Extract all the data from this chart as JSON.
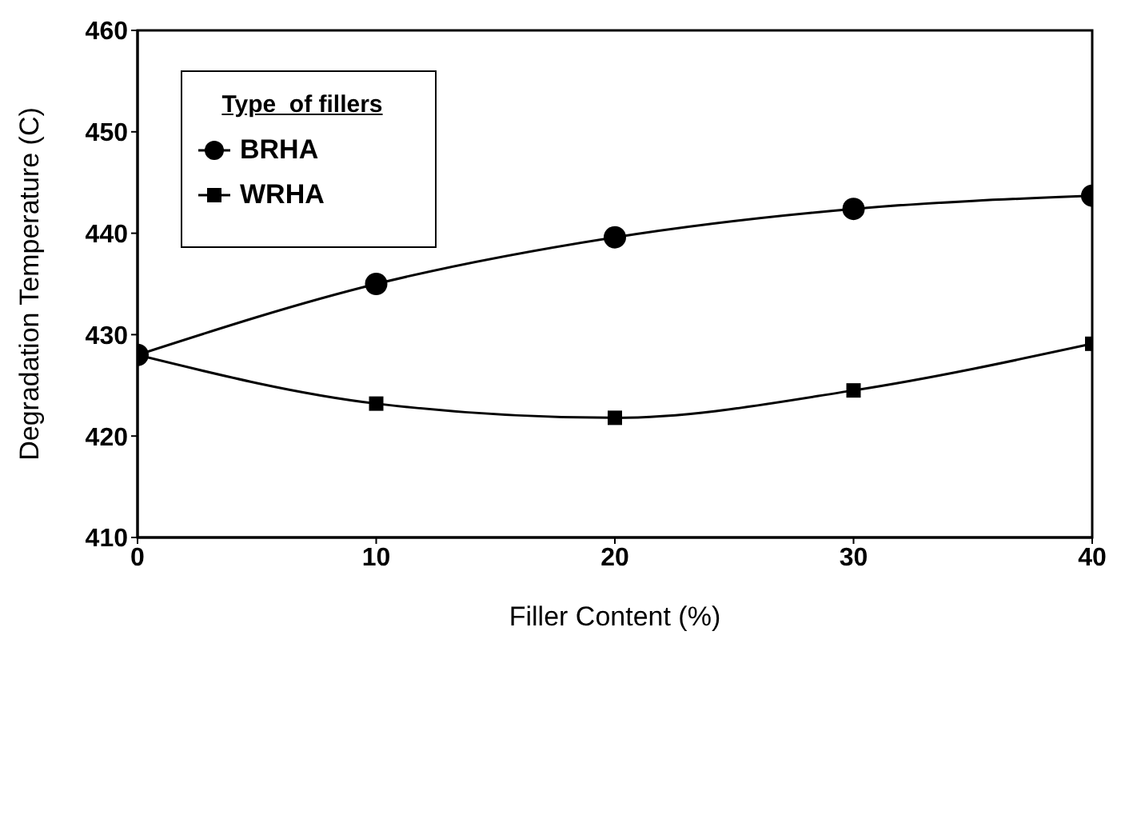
{
  "chart_data": {
    "type": "line",
    "xlabel": "Filler Content (%)",
    "ylabel": "Degradation Temperature (C)",
    "legend_title": "Type  of fillers",
    "x": [
      0,
      10,
      20,
      30,
      40
    ],
    "series": [
      {
        "name": "BRHA",
        "color": "#000000",
        "marker": "circle",
        "values": [
          428,
          435,
          439.6,
          442.4,
          443.7
        ]
      },
      {
        "name": "WRHA",
        "color": "#000000",
        "marker": "square",
        "values": [
          428,
          423.2,
          421.8,
          424.5,
          429.1
        ]
      }
    ],
    "xlim": [
      0,
      40
    ],
    "xticks": [
      0,
      10,
      20,
      30,
      40
    ],
    "ylim": [
      410,
      460
    ],
    "yticks": [
      410,
      420,
      430,
      440,
      450,
      460
    ],
    "grid": false,
    "legend": "top left",
    "line_style": "solid"
  }
}
